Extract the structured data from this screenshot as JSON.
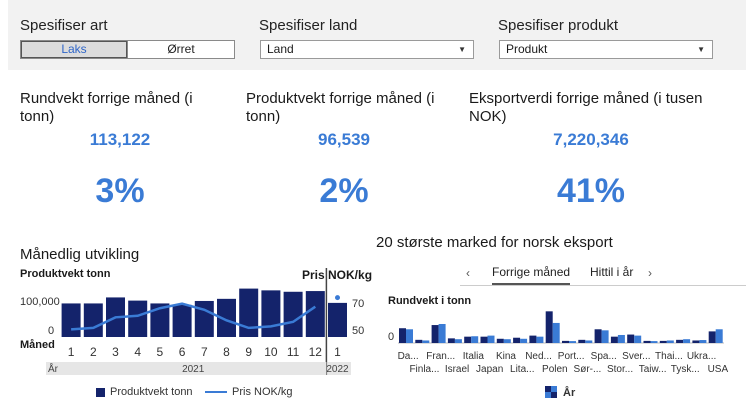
{
  "filters": {
    "art_label": "Spesifiser art",
    "art_options": [
      "Laks",
      "Ørret"
    ],
    "land_label": "Spesifiser land",
    "land_value": "Land",
    "produkt_label": "Spesifiser produkt",
    "produkt_value": "Produkt"
  },
  "kpis": [
    {
      "title_line1": "Rundvekt forrige måned (i",
      "title_line2": "tonn)",
      "value": "113,122",
      "pct": "3%"
    },
    {
      "title_line1": "Produktvekt forrige måned (i",
      "title_line2": "tonn)",
      "value": "96,539",
      "pct": "2%"
    },
    {
      "title_line1": "Eksportverdi forrige måned (i tusen",
      "title_line2": "NOK)",
      "value": "7,220,346",
      "pct": "41%"
    }
  ],
  "monthly": {
    "title": "Månedlig utvikling",
    "left_label": "Produktvekt tonn",
    "right_label": "Pris NOK/kg",
    "y_left_ticks": [
      "100,000",
      "0"
    ],
    "y_right_ticks": [
      "70",
      "50"
    ],
    "x_label": "Måned",
    "year_label": "År",
    "legend_bar": "Produktvekt tonn",
    "legend_line": "Pris NOK/kg",
    "bar_color": "#14236b",
    "line_color": "#3a7bd5"
  },
  "market": {
    "title": "20 største marked for norsk eksport",
    "tab_active": "Forrige måned",
    "tab_other": "Hittil i år",
    "arrow_left": "‹",
    "arrow_right": "›",
    "y_label": "Rundvekt i tonn",
    "y_tick": "0",
    "legend_label": "År",
    "labels_top": [
      "Da...",
      "Fran...",
      "Italia",
      "Kina",
      "Ned...",
      "Port...",
      "Spa...",
      "Sver...",
      "Thai...",
      "Ukra..."
    ],
    "labels_bottom": [
      "Finla...",
      "Israel",
      "Japan",
      "Lita...",
      "Polen",
      "Sør-...",
      "Stor...",
      "Taiw...",
      "Tysk...",
      "USA"
    ],
    "dark_color": "#14236b",
    "light_color": "#3a7bd5"
  },
  "chart_data": [
    {
      "type": "bar",
      "title": "Månedlig utvikling",
      "xlabel": "Måned",
      "ylabel": "Produktvekt tonn",
      "y2label": "Pris NOK/kg",
      "categories": [
        "1",
        "2",
        "3",
        "4",
        "5",
        "6",
        "7",
        "8",
        "9",
        "10",
        "11",
        "12",
        "1"
      ],
      "years": [
        {
          "label": "2021",
          "from": 0,
          "to": 11
        },
        {
          "label": "2022",
          "from": 12,
          "to": 12
        }
      ],
      "ylim": [
        0,
        150000
      ],
      "y2lim": [
        45,
        80
      ],
      "series": [
        {
          "name": "Produktvekt tonn",
          "kind": "bar",
          "values": [
            95000,
            95000,
            112000,
            103000,
            95000,
            91000,
            102000,
            108000,
            137000,
            132000,
            128000,
            130000,
            96539
          ]
        },
        {
          "name": "Pris NOK/kg",
          "kind": "line",
          "values": [
            50,
            51,
            58,
            59,
            64,
            67,
            63,
            56,
            51,
            52,
            55,
            65,
            71
          ]
        }
      ]
    },
    {
      "type": "bar",
      "title": "20 største marked for norsk eksport",
      "ylabel": "Rundvekt i tonn",
      "legend": "År",
      "categories": [
        "Danmark",
        "Finland",
        "Frankrike",
        "Israel",
        "Italia",
        "Japan",
        "Kina",
        "Litauen",
        "Nederland",
        "Polen",
        "Portugal",
        "Sør-Korea",
        "Spania",
        "Storbritannia",
        "Sverige",
        "Taiwan",
        "Thailand",
        "Tyskland",
        "Ukraina",
        "USA"
      ],
      "ylim": [
        0,
        18000
      ],
      "series": [
        {
          "name": "dark",
          "values": [
            7000,
            1500,
            8500,
            2200,
            3000,
            3000,
            2000,
            2500,
            3500,
            15000,
            1000,
            1500,
            6500,
            3000,
            4000,
            1000,
            1000,
            1500,
            1200,
            5500
          ]
        },
        {
          "name": "light",
          "values": [
            6500,
            1200,
            9000,
            1800,
            3200,
            3500,
            1800,
            2000,
            3000,
            9500,
            900,
            1200,
            6000,
            3800,
            3500,
            900,
            1200,
            1800,
            1400,
            6500
          ]
        }
      ]
    }
  ]
}
